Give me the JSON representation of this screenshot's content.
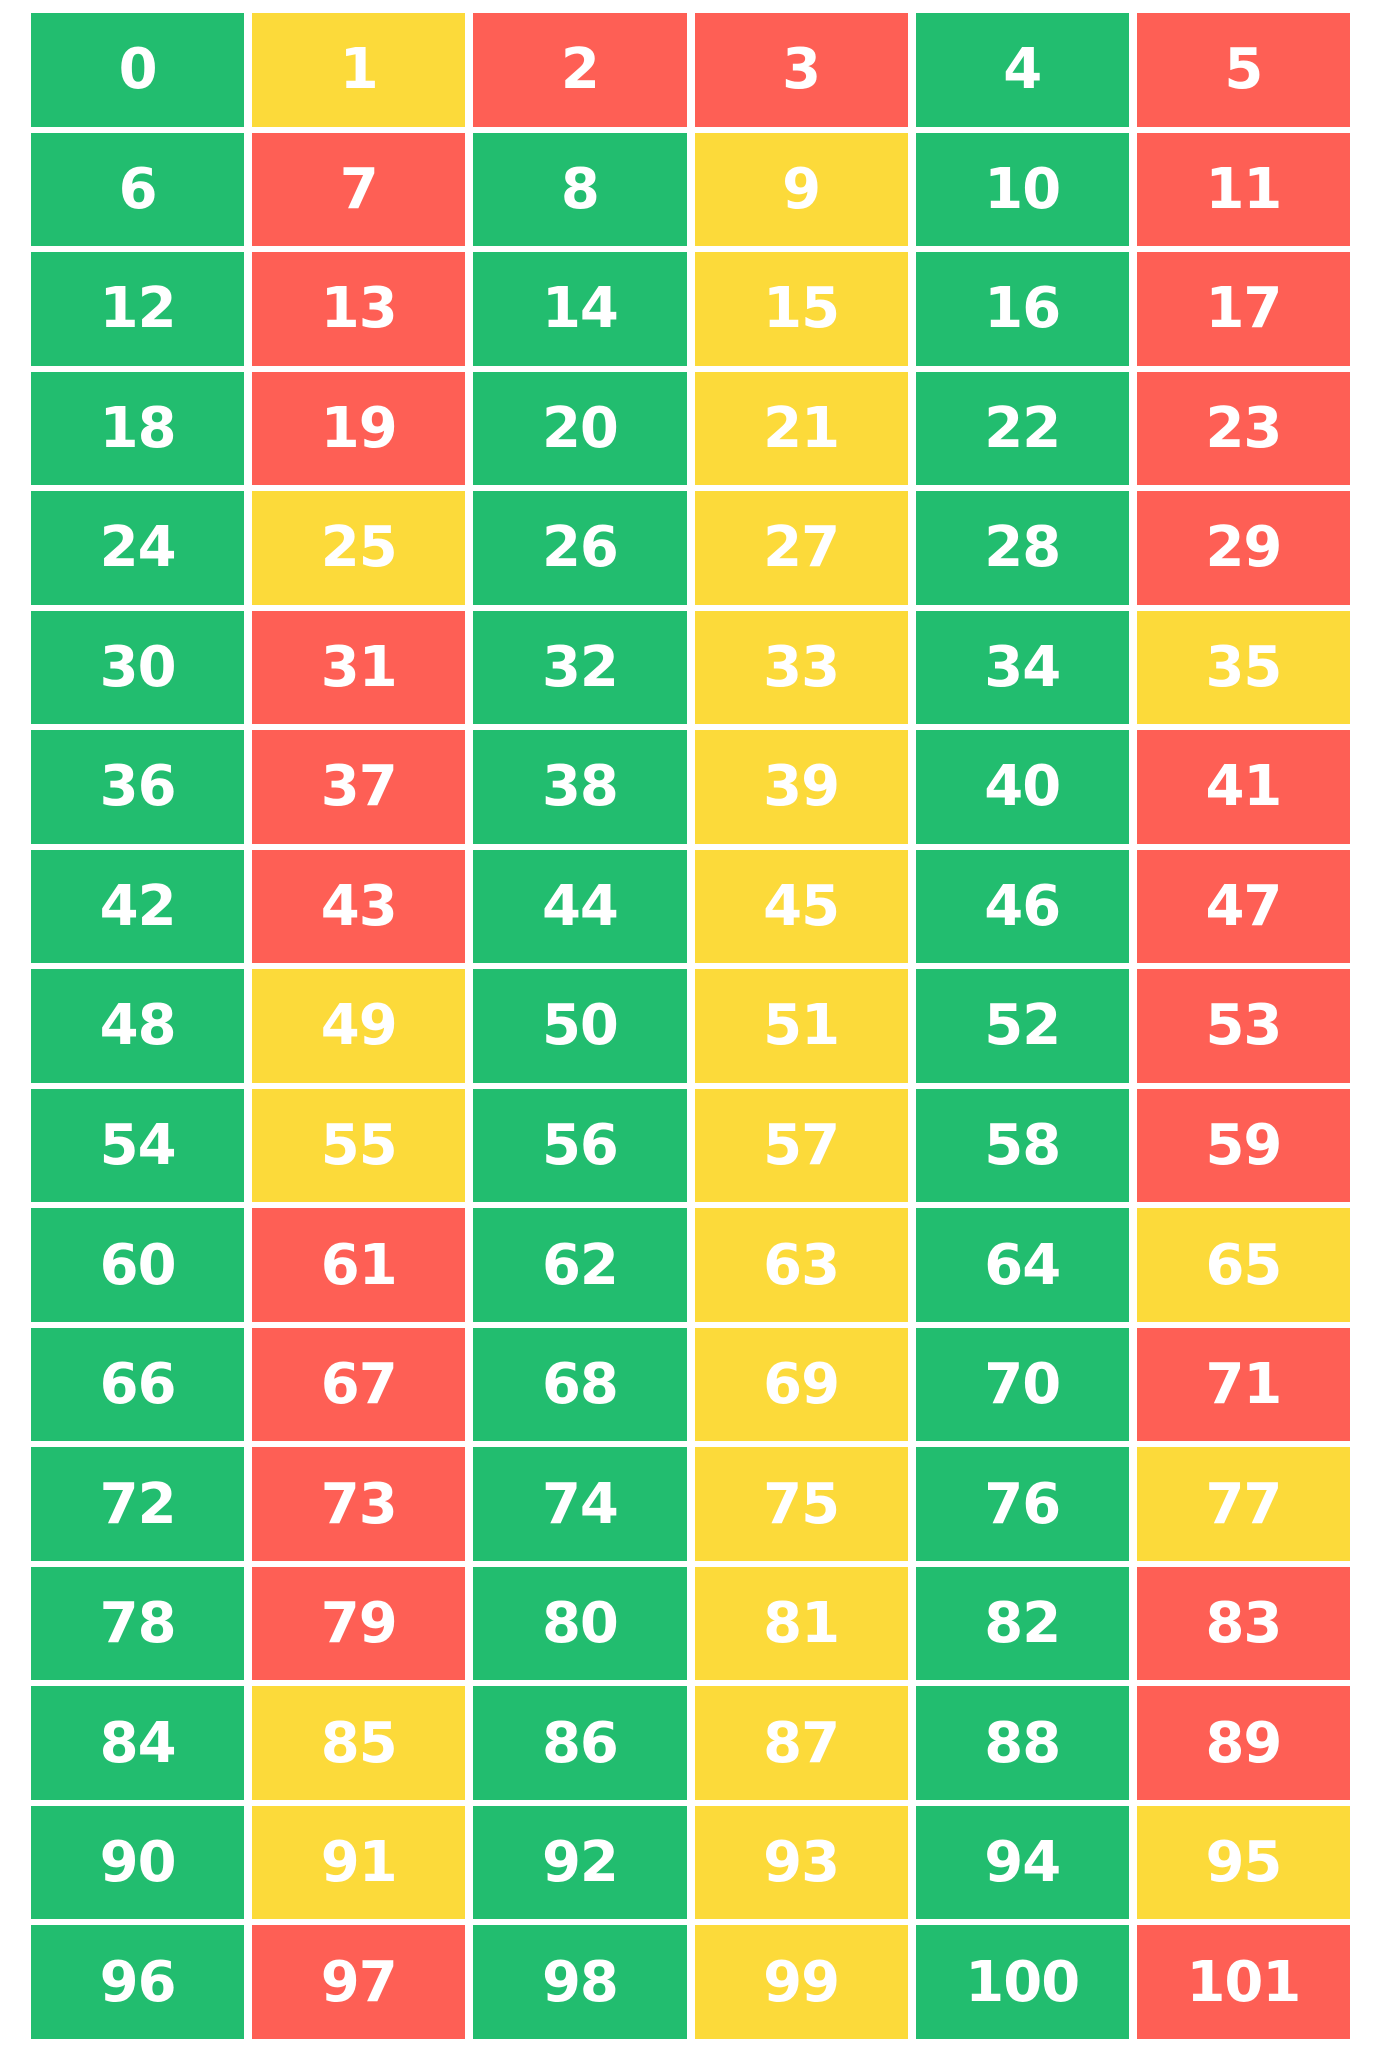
{
  "palette": {
    "green": "#22BD6F",
    "yellow": "#FCDA3A",
    "red": "#FE5F55"
  },
  "cells": [
    {
      "number": "0",
      "color": "green"
    },
    {
      "number": "1",
      "color": "yellow"
    },
    {
      "number": "2",
      "color": "red"
    },
    {
      "number": "3",
      "color": "red"
    },
    {
      "number": "4",
      "color": "green"
    },
    {
      "number": "5",
      "color": "red"
    },
    {
      "number": "6",
      "color": "green"
    },
    {
      "number": "7",
      "color": "red"
    },
    {
      "number": "8",
      "color": "green"
    },
    {
      "number": "9",
      "color": "yellow"
    },
    {
      "number": "10",
      "color": "green"
    },
    {
      "number": "11",
      "color": "red"
    },
    {
      "number": "12",
      "color": "green"
    },
    {
      "number": "13",
      "color": "red"
    },
    {
      "number": "14",
      "color": "green"
    },
    {
      "number": "15",
      "color": "yellow"
    },
    {
      "number": "16",
      "color": "green"
    },
    {
      "number": "17",
      "color": "red"
    },
    {
      "number": "18",
      "color": "green"
    },
    {
      "number": "19",
      "color": "red"
    },
    {
      "number": "20",
      "color": "green"
    },
    {
      "number": "21",
      "color": "yellow"
    },
    {
      "number": "22",
      "color": "green"
    },
    {
      "number": "23",
      "color": "red"
    },
    {
      "number": "24",
      "color": "green"
    },
    {
      "number": "25",
      "color": "yellow"
    },
    {
      "number": "26",
      "color": "green"
    },
    {
      "number": "27",
      "color": "yellow"
    },
    {
      "number": "28",
      "color": "green"
    },
    {
      "number": "29",
      "color": "red"
    },
    {
      "number": "30",
      "color": "green"
    },
    {
      "number": "31",
      "color": "red"
    },
    {
      "number": "32",
      "color": "green"
    },
    {
      "number": "33",
      "color": "yellow"
    },
    {
      "number": "34",
      "color": "green"
    },
    {
      "number": "35",
      "color": "yellow"
    },
    {
      "number": "36",
      "color": "green"
    },
    {
      "number": "37",
      "color": "red"
    },
    {
      "number": "38",
      "color": "green"
    },
    {
      "number": "39",
      "color": "yellow"
    },
    {
      "number": "40",
      "color": "green"
    },
    {
      "number": "41",
      "color": "red"
    },
    {
      "number": "42",
      "color": "green"
    },
    {
      "number": "43",
      "color": "red"
    },
    {
      "number": "44",
      "color": "green"
    },
    {
      "number": "45",
      "color": "yellow"
    },
    {
      "number": "46",
      "color": "green"
    },
    {
      "number": "47",
      "color": "red"
    },
    {
      "number": "48",
      "color": "green"
    },
    {
      "number": "49",
      "color": "yellow"
    },
    {
      "number": "50",
      "color": "green"
    },
    {
      "number": "51",
      "color": "yellow"
    },
    {
      "number": "52",
      "color": "green"
    },
    {
      "number": "53",
      "color": "red"
    },
    {
      "number": "54",
      "color": "green"
    },
    {
      "number": "55",
      "color": "yellow"
    },
    {
      "number": "56",
      "color": "green"
    },
    {
      "number": "57",
      "color": "yellow"
    },
    {
      "number": "58",
      "color": "green"
    },
    {
      "number": "59",
      "color": "red"
    },
    {
      "number": "60",
      "color": "green"
    },
    {
      "number": "61",
      "color": "red"
    },
    {
      "number": "62",
      "color": "green"
    },
    {
      "number": "63",
      "color": "yellow"
    },
    {
      "number": "64",
      "color": "green"
    },
    {
      "number": "65",
      "color": "yellow"
    },
    {
      "number": "66",
      "color": "green"
    },
    {
      "number": "67",
      "color": "red"
    },
    {
      "number": "68",
      "color": "green"
    },
    {
      "number": "69",
      "color": "yellow"
    },
    {
      "number": "70",
      "color": "green"
    },
    {
      "number": "71",
      "color": "red"
    },
    {
      "number": "72",
      "color": "green"
    },
    {
      "number": "73",
      "color": "red"
    },
    {
      "number": "74",
      "color": "green"
    },
    {
      "number": "75",
      "color": "yellow"
    },
    {
      "number": "76",
      "color": "green"
    },
    {
      "number": "77",
      "color": "yellow"
    },
    {
      "number": "78",
      "color": "green"
    },
    {
      "number": "79",
      "color": "red"
    },
    {
      "number": "80",
      "color": "green"
    },
    {
      "number": "81",
      "color": "yellow"
    },
    {
      "number": "82",
      "color": "green"
    },
    {
      "number": "83",
      "color": "red"
    },
    {
      "number": "84",
      "color": "green"
    },
    {
      "number": "85",
      "color": "yellow"
    },
    {
      "number": "86",
      "color": "green"
    },
    {
      "number": "87",
      "color": "yellow"
    },
    {
      "number": "88",
      "color": "green"
    },
    {
      "number": "89",
      "color": "red"
    },
    {
      "number": "90",
      "color": "green"
    },
    {
      "number": "91",
      "color": "yellow"
    },
    {
      "number": "92",
      "color": "green"
    },
    {
      "number": "93",
      "color": "yellow"
    },
    {
      "number": "94",
      "color": "green"
    },
    {
      "number": "95",
      "color": "yellow"
    },
    {
      "number": "96",
      "color": "green"
    },
    {
      "number": "97",
      "color": "red"
    },
    {
      "number": "98",
      "color": "green"
    },
    {
      "number": "99",
      "color": "yellow"
    },
    {
      "number": "100",
      "color": "green"
    },
    {
      "number": "101",
      "color": "red"
    }
  ]
}
